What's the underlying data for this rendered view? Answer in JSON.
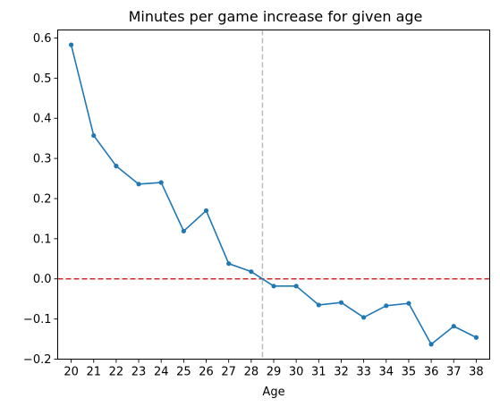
{
  "chart_data": {
    "type": "line",
    "title": "Minutes per game increase for given age",
    "xlabel": "Age",
    "ylabel": "",
    "x": [
      20,
      21,
      22,
      23,
      24,
      25,
      26,
      27,
      28,
      29,
      30,
      31,
      32,
      33,
      34,
      35,
      36,
      37,
      38
    ],
    "xlim": [
      19.4,
      38.6
    ],
    "ylim": [
      -0.2,
      0.62
    ],
    "yticks": [
      -0.2,
      -0.1,
      0.0,
      0.1,
      0.2,
      0.3,
      0.4,
      0.5,
      0.6
    ],
    "ytick_labels": [
      "−0.2",
      "−0.1",
      "0.0",
      "0.1",
      "0.2",
      "0.3",
      "0.4",
      "0.5",
      "0.6"
    ],
    "xtick_labels": [
      "20",
      "21",
      "22",
      "23",
      "24",
      "25",
      "26",
      "27",
      "28",
      "29",
      "30",
      "31",
      "32",
      "33",
      "34",
      "35",
      "36",
      "37",
      "38"
    ],
    "grid": false,
    "series": [
      {
        "color": "#1f77b4",
        "marker": "circle",
        "values": [
          0.583,
          0.357,
          0.281,
          0.236,
          0.24,
          0.119,
          0.17,
          0.038,
          0.018,
          -0.018,
          -0.018,
          -0.065,
          -0.059,
          -0.096,
          -0.067,
          -0.061,
          -0.163,
          -0.118,
          -0.146
        ]
      }
    ],
    "reference_lines": [
      {
        "orientation": "horizontal",
        "value": 0.0,
        "color": "#d62728",
        "style": "dashed"
      },
      {
        "orientation": "vertical",
        "value": 28.5,
        "color": "#bbbbbb",
        "style": "dashed"
      }
    ]
  }
}
